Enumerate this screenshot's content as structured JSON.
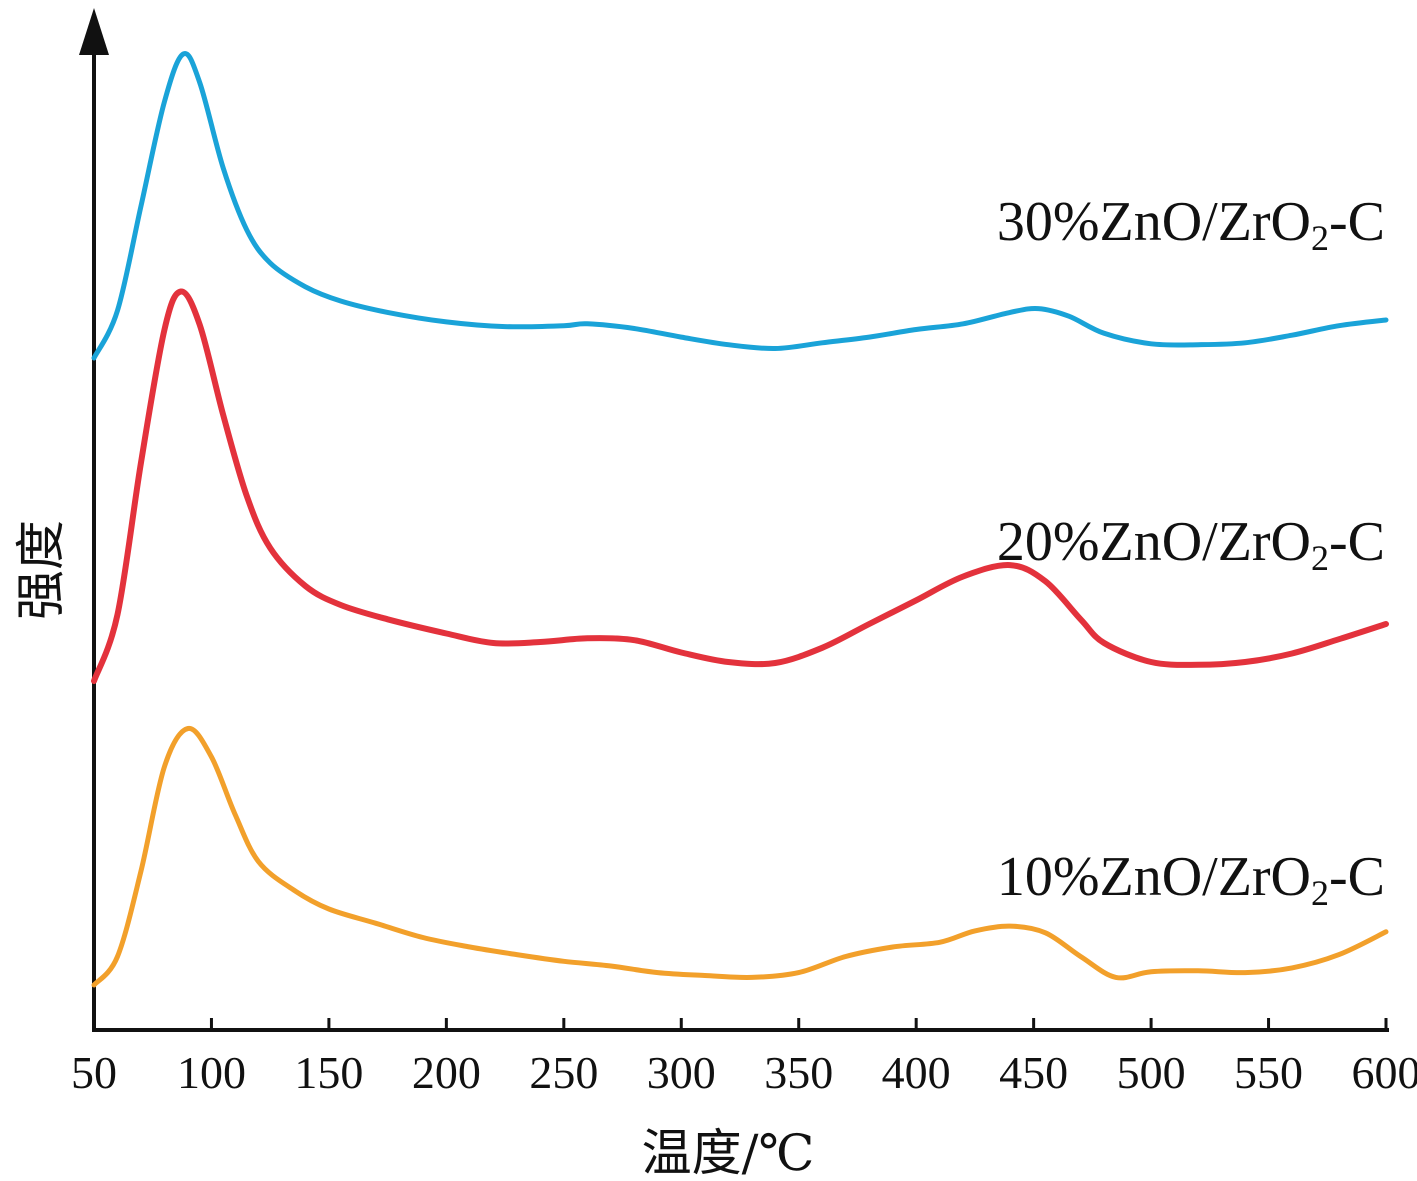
{
  "chart_data": {
    "type": "line",
    "title": "",
    "xlabel": "温度/℃",
    "ylabel": "强度",
    "xlim": [
      50,
      600
    ],
    "x_ticks": [
      "50",
      "100",
      "150",
      "200",
      "250",
      "300",
      "350",
      "400",
      "450",
      "500",
      "550",
      "600"
    ],
    "y_ticks": [],
    "grid": false,
    "legend": "none",
    "series": [
      {
        "name": "30%ZnO/ZrO2-C",
        "label_parts": [
          "30%ZnO/ZrO",
          "2",
          "-C"
        ],
        "color": "#1aa3d8",
        "offset": 0.66,
        "points": [
          [
            50,
            0.0
          ],
          [
            60,
            0.05
          ],
          [
            70,
            0.16
          ],
          [
            80,
            0.27
          ],
          [
            88,
            0.32
          ],
          [
            95,
            0.29
          ],
          [
            105,
            0.2
          ],
          [
            115,
            0.135
          ],
          [
            125,
            0.1
          ],
          [
            140,
            0.075
          ],
          [
            155,
            0.06
          ],
          [
            175,
            0.048
          ],
          [
            200,
            0.038
          ],
          [
            225,
            0.033
          ],
          [
            250,
            0.034
          ],
          [
            260,
            0.036
          ],
          [
            280,
            0.031
          ],
          [
            300,
            0.022
          ],
          [
            320,
            0.014
          ],
          [
            340,
            0.01
          ],
          [
            360,
            0.016
          ],
          [
            380,
            0.022
          ],
          [
            400,
            0.03
          ],
          [
            420,
            0.036
          ],
          [
            440,
            0.048
          ],
          [
            452,
            0.052
          ],
          [
            465,
            0.044
          ],
          [
            480,
            0.026
          ],
          [
            500,
            0.015
          ],
          [
            520,
            0.014
          ],
          [
            540,
            0.016
          ],
          [
            560,
            0.024
          ],
          [
            580,
            0.034
          ],
          [
            600,
            0.04
          ]
        ]
      },
      {
        "name": "20%ZnO/ZrO2-C",
        "label_parts": [
          "20%ZnO/ZrO",
          "2",
          "-C"
        ],
        "color": "#e3323c",
        "offset": 0.32,
        "points": [
          [
            50,
            0.0
          ],
          [
            60,
            0.07
          ],
          [
            70,
            0.23
          ],
          [
            80,
            0.37
          ],
          [
            87,
            0.41
          ],
          [
            95,
            0.375
          ],
          [
            105,
            0.28
          ],
          [
            115,
            0.195
          ],
          [
            125,
            0.14
          ],
          [
            140,
            0.1
          ],
          [
            155,
            0.08
          ],
          [
            175,
            0.065
          ],
          [
            200,
            0.05
          ],
          [
            220,
            0.04
          ],
          [
            240,
            0.041
          ],
          [
            260,
            0.045
          ],
          [
            280,
            0.043
          ],
          [
            300,
            0.03
          ],
          [
            320,
            0.02
          ],
          [
            340,
            0.019
          ],
          [
            360,
            0.035
          ],
          [
            380,
            0.06
          ],
          [
            400,
            0.085
          ],
          [
            420,
            0.11
          ],
          [
            440,
            0.122
          ],
          [
            455,
            0.105
          ],
          [
            470,
            0.065
          ],
          [
            480,
            0.04
          ],
          [
            500,
            0.02
          ],
          [
            520,
            0.017
          ],
          [
            540,
            0.02
          ],
          [
            560,
            0.029
          ],
          [
            580,
            0.044
          ],
          [
            600,
            0.06
          ]
        ]
      },
      {
        "name": "10%ZnO/ZrO2-C",
        "label_parts": [
          "10%ZnO/ZrO",
          "2",
          "-C"
        ],
        "color": "#f2a02b",
        "offset": 0.0,
        "points": [
          [
            50,
            0.0
          ],
          [
            60,
            0.03
          ],
          [
            70,
            0.12
          ],
          [
            80,
            0.23
          ],
          [
            90,
            0.27
          ],
          [
            100,
            0.24
          ],
          [
            110,
            0.18
          ],
          [
            120,
            0.13
          ],
          [
            135,
            0.1
          ],
          [
            150,
            0.08
          ],
          [
            170,
            0.065
          ],
          [
            190,
            0.05
          ],
          [
            210,
            0.04
          ],
          [
            230,
            0.032
          ],
          [
            250,
            0.025
          ],
          [
            270,
            0.02
          ],
          [
            290,
            0.013
          ],
          [
            310,
            0.01
          ],
          [
            330,
            0.008
          ],
          [
            350,
            0.013
          ],
          [
            370,
            0.03
          ],
          [
            390,
            0.04
          ],
          [
            410,
            0.045
          ],
          [
            425,
            0.057
          ],
          [
            440,
            0.062
          ],
          [
            455,
            0.055
          ],
          [
            470,
            0.03
          ],
          [
            485,
            0.008
          ],
          [
            500,
            0.014
          ],
          [
            520,
            0.015
          ],
          [
            540,
            0.013
          ],
          [
            560,
            0.018
          ],
          [
            580,
            0.032
          ],
          [
            600,
            0.056
          ]
        ]
      }
    ]
  }
}
